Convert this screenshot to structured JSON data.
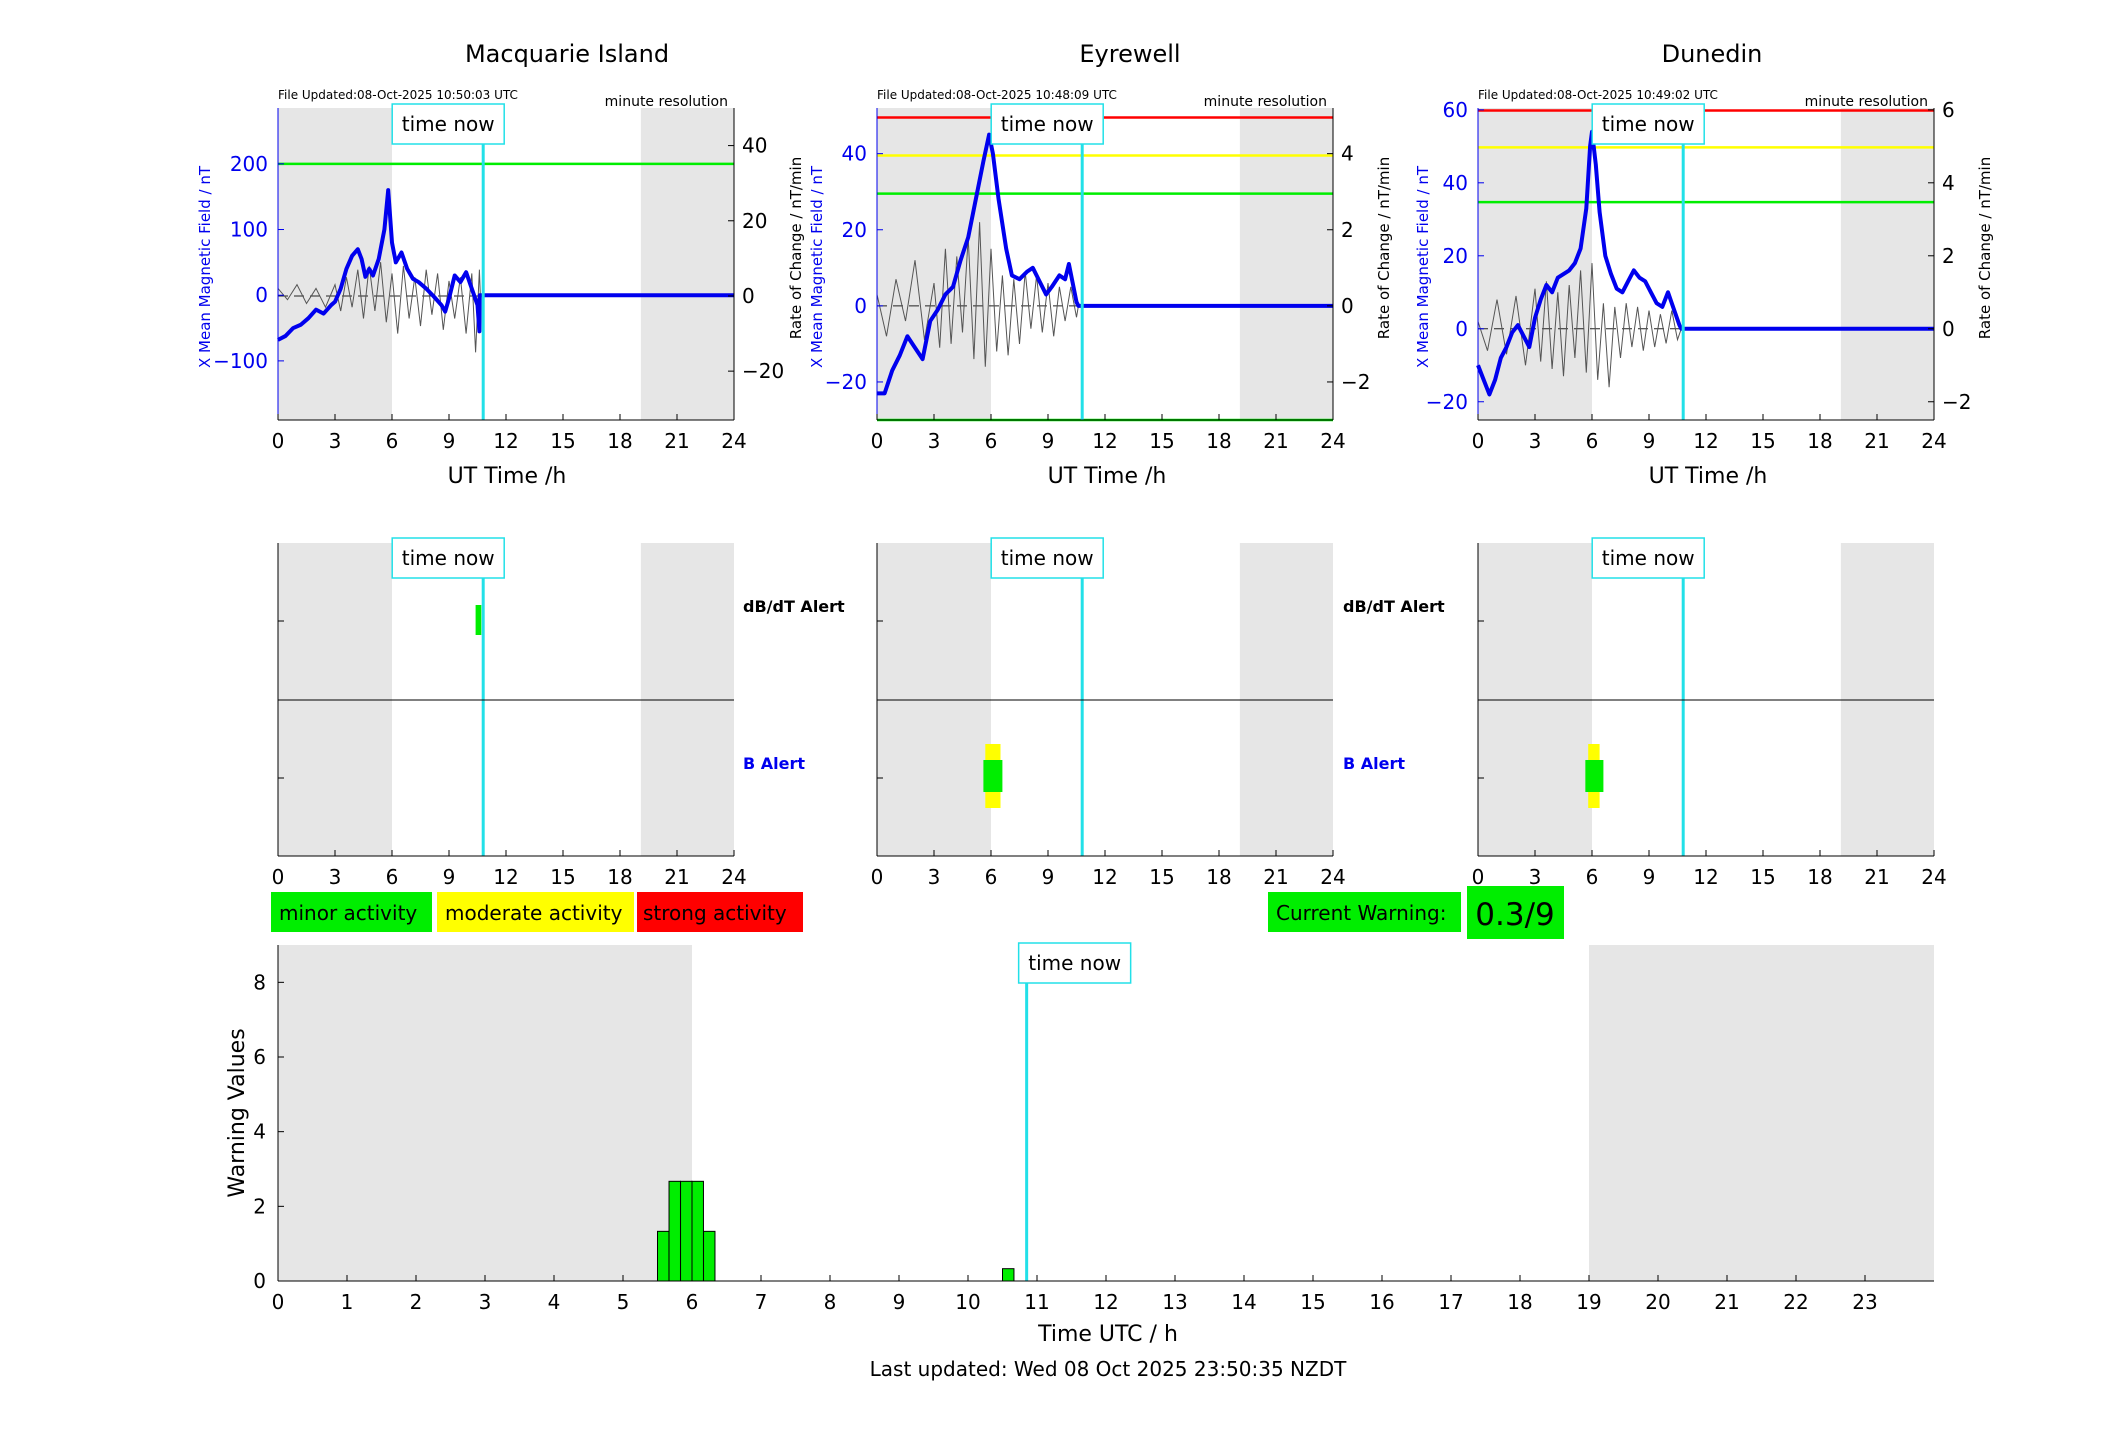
{
  "colors": {
    "field": "#0000ee",
    "rate": "#555555",
    "now_line": "#22e0e8",
    "night": "#e6e6e6",
    "minor": "#00ee00",
    "moderate": "#ffff00",
    "strong": "#ff0000"
  },
  "common": {
    "time_now_label": "time now",
    "resolution_label": "minute resolution",
    "ut_axis_label": "UT Time /h",
    "field_axis_label": "X Mean Magnetic Field / nT",
    "rate_axis_label": "Rate of Change / nT/min",
    "dbdt_alert_label": "dB/dT Alert",
    "b_alert_label": "B Alert"
  },
  "legend": {
    "minor": "minor activity",
    "moderate": "moderate activity",
    "strong": "strong activity"
  },
  "current_warning": {
    "label": "Current Warning:",
    "value": "0.3/9"
  },
  "footer": {
    "last_updated": "Last updated: Wed 08 Oct 2025 23:50:35 NZDT"
  },
  "chart_data": [
    {
      "type": "line",
      "station": "Macquarie Island",
      "file_updated": "File Updated:08-Oct-2025 10:50:03 UTC",
      "xlabel": "UT Time /h",
      "xlim": [
        0,
        24
      ],
      "xticks": [
        0,
        3,
        6,
        9,
        12,
        15,
        18,
        21,
        24
      ],
      "ylim_left": [
        -190,
        285
      ],
      "yticks_left": [
        -100,
        0,
        100,
        200
      ],
      "ylim_right": [
        -33,
        50
      ],
      "yticks_right": [
        -20,
        0,
        20,
        40
      ],
      "now_hour": 10.8,
      "night_bands": [
        [
          0,
          6
        ],
        [
          19.1,
          24
        ]
      ],
      "thresholds": [
        {
          "value": 200,
          "color": "#00ee00"
        }
      ],
      "field_series": [
        [
          0,
          -68
        ],
        [
          0.4,
          -62
        ],
        [
          0.8,
          -50
        ],
        [
          1.2,
          -45
        ],
        [
          1.6,
          -35
        ],
        [
          2.0,
          -22
        ],
        [
          2.4,
          -28
        ],
        [
          2.8,
          -15
        ],
        [
          3.0,
          -10
        ],
        [
          3.3,
          10
        ],
        [
          3.6,
          40
        ],
        [
          3.9,
          60
        ],
        [
          4.2,
          70
        ],
        [
          4.4,
          55
        ],
        [
          4.6,
          28
        ],
        [
          4.8,
          40
        ],
        [
          5.0,
          30
        ],
        [
          5.3,
          55
        ],
        [
          5.6,
          100
        ],
        [
          5.8,
          160
        ],
        [
          6.0,
          80
        ],
        [
          6.2,
          50
        ],
        [
          6.5,
          65
        ],
        [
          6.8,
          40
        ],
        [
          7.1,
          25
        ],
        [
          7.4,
          20
        ],
        [
          7.8,
          10
        ],
        [
          8.2,
          -2
        ],
        [
          8.6,
          -15
        ],
        [
          8.8,
          -25
        ],
        [
          9.0,
          -5
        ],
        [
          9.3,
          30
        ],
        [
          9.6,
          20
        ],
        [
          9.9,
          35
        ],
        [
          10.2,
          10
        ],
        [
          10.5,
          -15
        ],
        [
          10.6,
          -55
        ],
        [
          10.62,
          0
        ],
        [
          24,
          0
        ]
      ],
      "rate_series": [
        [
          0,
          2
        ],
        [
          0.5,
          -1
        ],
        [
          1,
          3
        ],
        [
          1.5,
          -2
        ],
        [
          2,
          2
        ],
        [
          2.5,
          -3
        ],
        [
          3,
          3
        ],
        [
          3.3,
          -4
        ],
        [
          3.6,
          5
        ],
        [
          3.9,
          -3
        ],
        [
          4.2,
          7
        ],
        [
          4.5,
          -6
        ],
        [
          4.8,
          8
        ],
        [
          5.1,
          -4
        ],
        [
          5.4,
          9
        ],
        [
          5.7,
          -7
        ],
        [
          6.0,
          6
        ],
        [
          6.3,
          -10
        ],
        [
          6.6,
          8
        ],
        [
          6.9,
          -6
        ],
        [
          7.2,
          5
        ],
        [
          7.5,
          -8
        ],
        [
          7.8,
          7
        ],
        [
          8.1,
          -5
        ],
        [
          8.4,
          6
        ],
        [
          8.7,
          -9
        ],
        [
          9.0,
          4
        ],
        [
          9.3,
          -6
        ],
        [
          9.6,
          5
        ],
        [
          9.9,
          -10
        ],
        [
          10.2,
          6
        ],
        [
          10.4,
          -15
        ],
        [
          10.6,
          7
        ],
        [
          10.65,
          0
        ],
        [
          24,
          0
        ]
      ],
      "dbdt_alerts": [
        {
          "start": 10.4,
          "end": 10.7,
          "level": "minor"
        }
      ],
      "b_alerts": []
    },
    {
      "type": "line",
      "station": "Eyrewell",
      "file_updated": "File Updated:08-Oct-2025 10:48:09 UTC",
      "xlabel": "UT Time /h",
      "xlim": [
        0,
        24
      ],
      "xticks": [
        0,
        3,
        6,
        9,
        12,
        15,
        18,
        21,
        24
      ],
      "ylim_left": [
        -30,
        52
      ],
      "yticks_left": [
        -20,
        0,
        20,
        40
      ],
      "ylim_right": [
        -3,
        5.2
      ],
      "yticks_right": [
        -2,
        0,
        2,
        4
      ],
      "now_hour": 10.8,
      "night_bands": [
        [
          0,
          6
        ],
        [
          19.1,
          24
        ]
      ],
      "thresholds": [
        {
          "value": 49.5,
          "color": "#ff0000"
        },
        {
          "value": 39.5,
          "color": "#ffff00"
        },
        {
          "value": 29.5,
          "color": "#00ee00"
        },
        {
          "value": -30,
          "color": "#00ee00"
        }
      ],
      "field_series": [
        [
          0,
          -23
        ],
        [
          0.4,
          -23
        ],
        [
          0.8,
          -17
        ],
        [
          1.2,
          -13
        ],
        [
          1.6,
          -8
        ],
        [
          2.0,
          -11
        ],
        [
          2.4,
          -14
        ],
        [
          2.8,
          -4
        ],
        [
          3.2,
          -1
        ],
        [
          3.6,
          3
        ],
        [
          4.0,
          5
        ],
        [
          4.4,
          12
        ],
        [
          4.8,
          18
        ],
        [
          5.2,
          28
        ],
        [
          5.6,
          38
        ],
        [
          5.9,
          45
        ],
        [
          6.1,
          40
        ],
        [
          6.4,
          28
        ],
        [
          6.8,
          15
        ],
        [
          7.1,
          8
        ],
        [
          7.5,
          7
        ],
        [
          7.9,
          9
        ],
        [
          8.2,
          10
        ],
        [
          8.5,
          7
        ],
        [
          8.9,
          3
        ],
        [
          9.2,
          5
        ],
        [
          9.6,
          8
        ],
        [
          9.9,
          7
        ],
        [
          10.1,
          11
        ],
        [
          10.3,
          6
        ],
        [
          10.5,
          1
        ],
        [
          10.6,
          0
        ],
        [
          24,
          0
        ]
      ],
      "rate_series": [
        [
          0,
          0.3
        ],
        [
          0.5,
          -0.8
        ],
        [
          1,
          0.7
        ],
        [
          1.5,
          -0.4
        ],
        [
          2,
          1.2
        ],
        [
          2.5,
          -0.9
        ],
        [
          3,
          0.6
        ],
        [
          3.3,
          -1.1
        ],
        [
          3.6,
          1.5
        ],
        [
          3.9,
          -1
        ],
        [
          4.2,
          1.3
        ],
        [
          4.5,
          -0.7
        ],
        [
          4.8,
          1.8
        ],
        [
          5.1,
          -1.4
        ],
        [
          5.4,
          2.2
        ],
        [
          5.7,
          -1.6
        ],
        [
          6.0,
          1.5
        ],
        [
          6.3,
          -1.2
        ],
        [
          6.6,
          0.8
        ],
        [
          6.9,
          -1.3
        ],
        [
          7.2,
          0.7
        ],
        [
          7.5,
          -1
        ],
        [
          7.8,
          0.9
        ],
        [
          8.1,
          -0.6
        ],
        [
          8.4,
          0.8
        ],
        [
          8.7,
          -0.7
        ],
        [
          9.0,
          0.6
        ],
        [
          9.3,
          -0.8
        ],
        [
          9.6,
          0.5
        ],
        [
          9.9,
          -0.4
        ],
        [
          10.2,
          0.5
        ],
        [
          10.5,
          -0.3
        ],
        [
          10.6,
          0
        ],
        [
          24,
          0
        ]
      ],
      "dbdt_alerts": [],
      "b_alerts": [
        {
          "start": 5.7,
          "end": 6.5,
          "level": "moderate"
        },
        {
          "start": 5.6,
          "end": 6.6,
          "level": "minor"
        }
      ]
    },
    {
      "type": "line",
      "station": "Dunedin",
      "file_updated": "File Updated:08-Oct-2025 10:49:02 UTC",
      "xlabel": "UT Time /h",
      "xlim": [
        0,
        24
      ],
      "xticks": [
        0,
        3,
        6,
        9,
        12,
        15,
        18,
        21,
        24
      ],
      "ylim_left": [
        -25,
        60.5
      ],
      "yticks_left": [
        -20,
        0,
        20,
        40,
        60
      ],
      "ylim_right": [
        -2.5,
        6.05
      ],
      "yticks_right": [
        -2,
        0,
        2,
        4,
        6
      ],
      "now_hour": 10.8,
      "night_bands": [
        [
          0,
          6
        ],
        [
          19.1,
          24
        ]
      ],
      "thresholds": [
        {
          "value": 59.8,
          "color": "#ff0000"
        },
        {
          "value": 49.7,
          "color": "#ffff00"
        },
        {
          "value": 34.7,
          "color": "#00ee00"
        }
      ],
      "field_series": [
        [
          0,
          -10
        ],
        [
          0.3,
          -14
        ],
        [
          0.6,
          -18
        ],
        [
          0.9,
          -14
        ],
        [
          1.2,
          -8
        ],
        [
          1.5,
          -5
        ],
        [
          1.8,
          -1
        ],
        [
          2.1,
          1
        ],
        [
          2.4,
          -2
        ],
        [
          2.7,
          -5
        ],
        [
          3.0,
          3
        ],
        [
          3.3,
          8
        ],
        [
          3.6,
          12
        ],
        [
          3.9,
          10
        ],
        [
          4.2,
          14
        ],
        [
          4.5,
          15
        ],
        [
          4.8,
          16
        ],
        [
          5.1,
          18
        ],
        [
          5.4,
          22
        ],
        [
          5.7,
          33
        ],
        [
          5.9,
          50
        ],
        [
          6.0,
          54
        ],
        [
          6.2,
          45
        ],
        [
          6.4,
          32
        ],
        [
          6.7,
          20
        ],
        [
          7.0,
          15
        ],
        [
          7.3,
          11
        ],
        [
          7.6,
          10
        ],
        [
          7.9,
          13
        ],
        [
          8.2,
          16
        ],
        [
          8.5,
          14
        ],
        [
          8.8,
          13
        ],
        [
          9.1,
          10
        ],
        [
          9.4,
          7
        ],
        [
          9.7,
          6
        ],
        [
          10.0,
          10
        ],
        [
          10.2,
          7
        ],
        [
          10.4,
          4
        ],
        [
          10.6,
          1
        ],
        [
          10.7,
          0
        ],
        [
          24,
          0
        ]
      ],
      "rate_series": [
        [
          0,
          0.2
        ],
        [
          0.5,
          -0.6
        ],
        [
          1,
          0.8
        ],
        [
          1.5,
          -0.7
        ],
        [
          2,
          0.9
        ],
        [
          2.5,
          -1
        ],
        [
          3,
          1.1
        ],
        [
          3.3,
          -0.9
        ],
        [
          3.6,
          1.3
        ],
        [
          3.9,
          -1.1
        ],
        [
          4.2,
          1
        ],
        [
          4.5,
          -1.3
        ],
        [
          4.8,
          1.2
        ],
        [
          5.1,
          -0.8
        ],
        [
          5.4,
          1.6
        ],
        [
          5.7,
          -1.2
        ],
        [
          6.0,
          1.8
        ],
        [
          6.3,
          -1.4
        ],
        [
          6.6,
          0.7
        ],
        [
          6.9,
          -1.6
        ],
        [
          7.2,
          0.6
        ],
        [
          7.5,
          -0.8
        ],
        [
          7.8,
          0.7
        ],
        [
          8.1,
          -0.5
        ],
        [
          8.4,
          0.6
        ],
        [
          8.7,
          -0.6
        ],
        [
          9.0,
          0.5
        ],
        [
          9.3,
          -0.5
        ],
        [
          9.6,
          0.4
        ],
        [
          9.9,
          -0.4
        ],
        [
          10.2,
          0.5
        ],
        [
          10.5,
          -0.3
        ],
        [
          10.7,
          0
        ],
        [
          24,
          0
        ]
      ],
      "dbdt_alerts": [],
      "b_alerts": [
        {
          "start": 5.8,
          "end": 6.4,
          "level": "moderate"
        },
        {
          "start": 5.65,
          "end": 6.6,
          "level": "minor"
        }
      ]
    },
    {
      "type": "bar",
      "title": "",
      "xlabel": "Time UTC / h",
      "ylabel": "Warning Values",
      "xlim": [
        0,
        24
      ],
      "xticks": [
        0,
        1,
        2,
        3,
        4,
        5,
        6,
        7,
        8,
        9,
        10,
        11,
        12,
        13,
        14,
        15,
        16,
        17,
        18,
        19,
        20,
        21,
        22,
        23
      ],
      "ylim": [
        0,
        9
      ],
      "yticks": [
        0,
        2,
        4,
        6,
        8
      ],
      "now_hour": 10.85,
      "night_bands": [
        [
          0,
          6
        ],
        [
          19,
          24
        ]
      ],
      "bar_width": 0.166,
      "bars": [
        [
          5.583,
          1.33
        ],
        [
          5.75,
          2.67
        ],
        [
          5.917,
          2.67
        ],
        [
          6.083,
          2.67
        ],
        [
          6.25,
          1.33
        ],
        [
          10.583,
          0.33
        ]
      ]
    }
  ]
}
